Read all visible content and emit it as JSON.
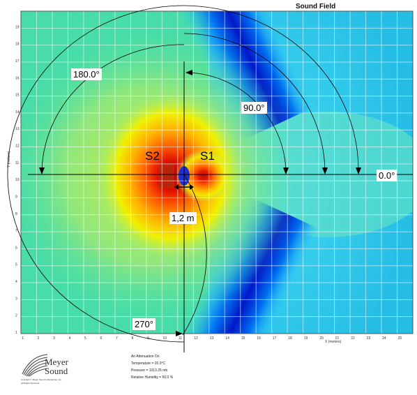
{
  "title": "Sound Field",
  "angles": {
    "a180": "180.0°",
    "a90": "90.0°",
    "a0": "0.0°",
    "a270": "270°"
  },
  "sources": {
    "s1": "S1",
    "s2": "S2"
  },
  "spacing": "1,2 m",
  "axes": {
    "x_label": "X (meters)",
    "y_label": "Y (meters)",
    "x_ticks": [
      "1",
      "2",
      "3",
      "4",
      "5",
      "6",
      "7",
      "8",
      "9",
      "10",
      "11",
      "12",
      "13",
      "14",
      "15",
      "16",
      "17",
      "18",
      "19",
      "20",
      "21",
      "22",
      "23",
      "24",
      "25"
    ],
    "y_ticks": [
      "19",
      "18",
      "17",
      "16",
      "15",
      "14",
      "13",
      "12",
      "11",
      "10",
      "9",
      "8",
      "7",
      "6",
      "5",
      "4",
      "3",
      "2",
      "1"
    ]
  },
  "atmosphere": {
    "heading": "Air Attenuation On",
    "temperature": "Temperature = 20.0°C",
    "pressure": "Pressure = 1013.25 mb",
    "humidity": "Relative Humidity = 50.0 %"
  },
  "logo": {
    "name_line1": "Meyer",
    "name_line2": "Sound",
    "copyright": "Copyright © Meyer Sound Laboratories, Inc.",
    "rights": "All Rights Reserved"
  },
  "colors": {
    "hot": "#c80000",
    "warm": "#ffe000",
    "neutral": "#50e0a0",
    "cool": "#00a8ff",
    "null": "#0010c0"
  }
}
